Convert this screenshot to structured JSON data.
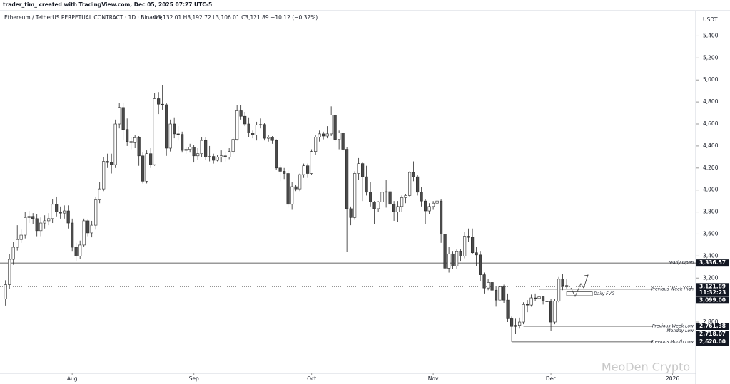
{
  "header": {
    "credit": "trader_tim_ created with TradingView.com, Dec 05, 2025 07:27 UTC-5"
  },
  "chart_data": {
    "type": "candlestick",
    "title": "Ethereum / TetherUS PERPETUAL CONTRACT · 1D · Binance",
    "legend_ohlc": "O3,132.01 H3,192.72 L3,106.01 C3,121.89 −10.12 (−0.32%)",
    "currency": "USDT",
    "watermark": "MeoDen Crypto",
    "up_color": "#ffffff",
    "down_color": "#4a4a4a",
    "wick_color": "#2a2a2a",
    "grid": false,
    "xlim": [
      -1.4,
      175.9
    ],
    "xticks": [
      {
        "value": 17,
        "label": "Aug"
      },
      {
        "value": 48,
        "label": "Sep"
      },
      {
        "value": 78,
        "label": "Oct"
      },
      {
        "value": 109,
        "label": "Nov"
      },
      {
        "value": 139,
        "label": "Dec"
      },
      {
        "value": 170,
        "label": "2026"
      }
    ],
    "ylim": [
      2360,
      5500
    ],
    "yticks": [
      {
        "value": 5400,
        "label": "5,400"
      },
      {
        "value": 5200,
        "label": "5,200"
      },
      {
        "value": 5000,
        "label": "5,000"
      },
      {
        "value": 4800,
        "label": "4,800"
      },
      {
        "value": 4600,
        "label": "4,600"
      },
      {
        "value": 4400,
        "label": "4,400"
      },
      {
        "value": 4200,
        "label": "4,200"
      },
      {
        "value": 4000,
        "label": "4,000"
      },
      {
        "value": 3800,
        "label": "3,800"
      },
      {
        "value": 3600,
        "label": "3,600"
      },
      {
        "value": 3400,
        "label": "3,400"
      },
      {
        "value": 3200,
        "label": "3,200"
      },
      {
        "value": 2800,
        "label": "2,800"
      }
    ],
    "open": [
      3010,
      3140,
      3370,
      3480,
      3550,
      3590,
      3750,
      3760,
      3740,
      3630,
      3700,
      3720,
      3740,
      3870,
      3800,
      3790,
      3810,
      3700,
      3480,
      3400,
      3500,
      3720,
      3610,
      3680,
      3910,
      4010,
      4260,
      4250,
      4230,
      4600,
      4750,
      4550,
      4440,
      4430,
      4475,
      4310,
      4080,
      4330,
      4230,
      4830,
      4780,
      4775,
      4380,
      4600,
      4510,
      4505,
      4360,
      4370,
      4390,
      4310,
      4330,
      4450,
      4300,
      4305,
      4270,
      4300,
      4310,
      4300,
      4350,
      4460,
      4720,
      4670,
      4600,
      4520,
      4500,
      4590,
      4595,
      4470,
      4480,
      4450,
      4200,
      4170,
      4150,
      3870,
      4030,
      4010,
      4140,
      4220,
      4150,
      4350,
      4480,
      4510,
      4490,
      4510,
      4680,
      4460,
      4520,
      4370,
      3830,
      3750,
      4150,
      4240,
      4120,
      3980,
      3890,
      3830,
      3890,
      3980,
      3985,
      3870,
      3800,
      3850,
      3930,
      3950,
      4160,
      4120,
      3980,
      3900,
      3810,
      3850,
      3880,
      3900,
      3600,
      3290,
      3420,
      3310,
      3440,
      3400,
      3580,
      3570,
      3430,
      3410,
      3230,
      3110,
      3160,
      3090,
      3000,
      3120,
      3000,
      2830,
      2760,
      2770,
      2800,
      2960,
      2955,
      3020,
      3015,
      3030,
      2990,
      2985,
      2800,
      2990,
      3190,
      3132.01
    ],
    "high": [
      3180,
      3420,
      3530,
      3680,
      3640,
      3800,
      3810,
      3790,
      3780,
      3750,
      3770,
      3790,
      3920,
      3940,
      3850,
      3860,
      3860,
      3740,
      3520,
      3540,
      3740,
      3730,
      3720,
      3940,
      4070,
      4300,
      4330,
      4330,
      4640,
      4790,
      4790,
      4650,
      4480,
      4500,
      4490,
      4340,
      4360,
      4380,
      4880,
      4890,
      4956,
      4790,
      4640,
      4660,
      4580,
      4530,
      4390,
      4420,
      4410,
      4380,
      4480,
      4480,
      4400,
      4330,
      4320,
      4360,
      4350,
      4380,
      4480,
      4770,
      4770,
      4710,
      4660,
      4540,
      4620,
      4650,
      4610,
      4500,
      4490,
      4460,
      4230,
      4200,
      4180,
      4070,
      4050,
      4150,
      4240,
      4240,
      4370,
      4500,
      4540,
      4530,
      4580,
      4760,
      4690,
      4540,
      4530,
      4390,
      3850,
      4170,
      4290,
      4250,
      4220,
      4070,
      3900,
      3900,
      4030,
      4090,
      4010,
      3900,
      3900,
      3950,
      3960,
      4170,
      4260,
      4140,
      4030,
      3920,
      3880,
      3900,
      3920,
      3920,
      3620,
      3480,
      3440,
      3460,
      3460,
      3620,
      3650,
      3650,
      3480,
      3440,
      3250,
      3190,
      3180,
      3130,
      3170,
      3140,
      3060,
      2850,
      2830,
      2840,
      2980,
      3000,
      3050,
      3060,
      3050,
      3040,
      3030,
      3010,
      3010,
      3210,
      3240,
      3192.72
    ],
    "low": [
      2950,
      3100,
      3320,
      3450,
      3520,
      3560,
      3700,
      3690,
      3580,
      3580,
      3650,
      3680,
      3700,
      3760,
      3740,
      3740,
      3650,
      3440,
      3350,
      3370,
      3480,
      3580,
      3570,
      3640,
      3880,
      3990,
      4200,
      4150,
      4200,
      4560,
      4450,
      4400,
      4370,
      4380,
      4220,
      4060,
      4060,
      4200,
      4220,
      4690,
      4730,
      4310,
      4350,
      4470,
      4450,
      4340,
      4330,
      4340,
      4250,
      4270,
      4300,
      4270,
      4260,
      4240,
      4260,
      4250,
      4260,
      4280,
      4330,
      4450,
      4640,
      4580,
      4480,
      4470,
      4450,
      4560,
      4450,
      4440,
      4420,
      4180,
      4080,
      4100,
      3840,
      3820,
      3990,
      3990,
      4110,
      4110,
      4140,
      4320,
      4440,
      4460,
      4470,
      4490,
      4430,
      4370,
      4340,
      3435,
      3680,
      3730,
      4090,
      3900,
      3950,
      3850,
      3690,
      3800,
      3870,
      3840,
      3790,
      3720,
      3710,
      3800,
      3880,
      3940,
      4080,
      3950,
      3850,
      3690,
      3780,
      3820,
      3840,
      3520,
      3057,
      3250,
      3280,
      3280,
      3350,
      3380,
      3530,
      3420,
      3310,
      3170,
      3060,
      3090,
      3060,
      2940,
      2950,
      2970,
      2800,
      2620,
      2690,
      2740,
      2780,
      2890,
      2940,
      2990,
      2990,
      2960,
      2960,
      2718,
      2780,
      2980,
      3090,
      3106.01
    ],
    "close": [
      3140,
      3370,
      3480,
      3550,
      3590,
      3750,
      3760,
      3740,
      3630,
      3700,
      3720,
      3740,
      3870,
      3800,
      3790,
      3810,
      3700,
      3480,
      3400,
      3500,
      3720,
      3610,
      3680,
      3910,
      4010,
      4260,
      4250,
      4230,
      4600,
      4750,
      4550,
      4440,
      4430,
      4475,
      4310,
      4080,
      4330,
      4230,
      4830,
      4780,
      4775,
      4380,
      4600,
      4510,
      4505,
      4360,
      4370,
      4390,
      4310,
      4330,
      4450,
      4300,
      4305,
      4270,
      4300,
      4310,
      4300,
      4350,
      4460,
      4720,
      4670,
      4600,
      4520,
      4500,
      4590,
      4595,
      4470,
      4480,
      4450,
      4200,
      4170,
      4150,
      3870,
      4030,
      4010,
      4140,
      4220,
      4150,
      4350,
      4480,
      4510,
      4490,
      4510,
      4680,
      4460,
      4520,
      4370,
      3830,
      3750,
      4150,
      4240,
      4120,
      3980,
      3890,
      3830,
      3890,
      3980,
      3985,
      3870,
      3800,
      3850,
      3930,
      3950,
      4160,
      4120,
      3980,
      3900,
      3810,
      3850,
      3880,
      3900,
      3600,
      3290,
      3420,
      3310,
      3440,
      3400,
      3580,
      3570,
      3430,
      3410,
      3230,
      3110,
      3160,
      3090,
      3000,
      3120,
      3000,
      2830,
      2760,
      2770,
      2800,
      2960,
      2955,
      3020,
      3015,
      3030,
      2990,
      2985,
      2800,
      2990,
      3190,
      3132.01,
      3121.89
    ],
    "last": {
      "value": 3121.89,
      "label": "3,121.89",
      "countdown": "11:32:23"
    },
    "levels": [
      {
        "name": "Yearly Open",
        "value": 3336.57,
        "label": "3,336.57"
      },
      {
        "name": "Previous Week High",
        "value": 3099,
        "label": "3,099.00",
        "from": 136
      },
      {
        "name": "Previous Week Low",
        "value": 2761.38,
        "label": "2,761.38",
        "from": 132
      },
      {
        "name": "Monday Low",
        "value": 2718.07,
        "label": "2,718.07",
        "from": 139
      },
      {
        "name": "Previous Month Low",
        "value": 2620,
        "label": "2,620.00",
        "from": 129
      }
    ],
    "fvg": {
      "label": "Daily FVG",
      "low": 3040,
      "high": 3075,
      "from": 143
    }
  }
}
